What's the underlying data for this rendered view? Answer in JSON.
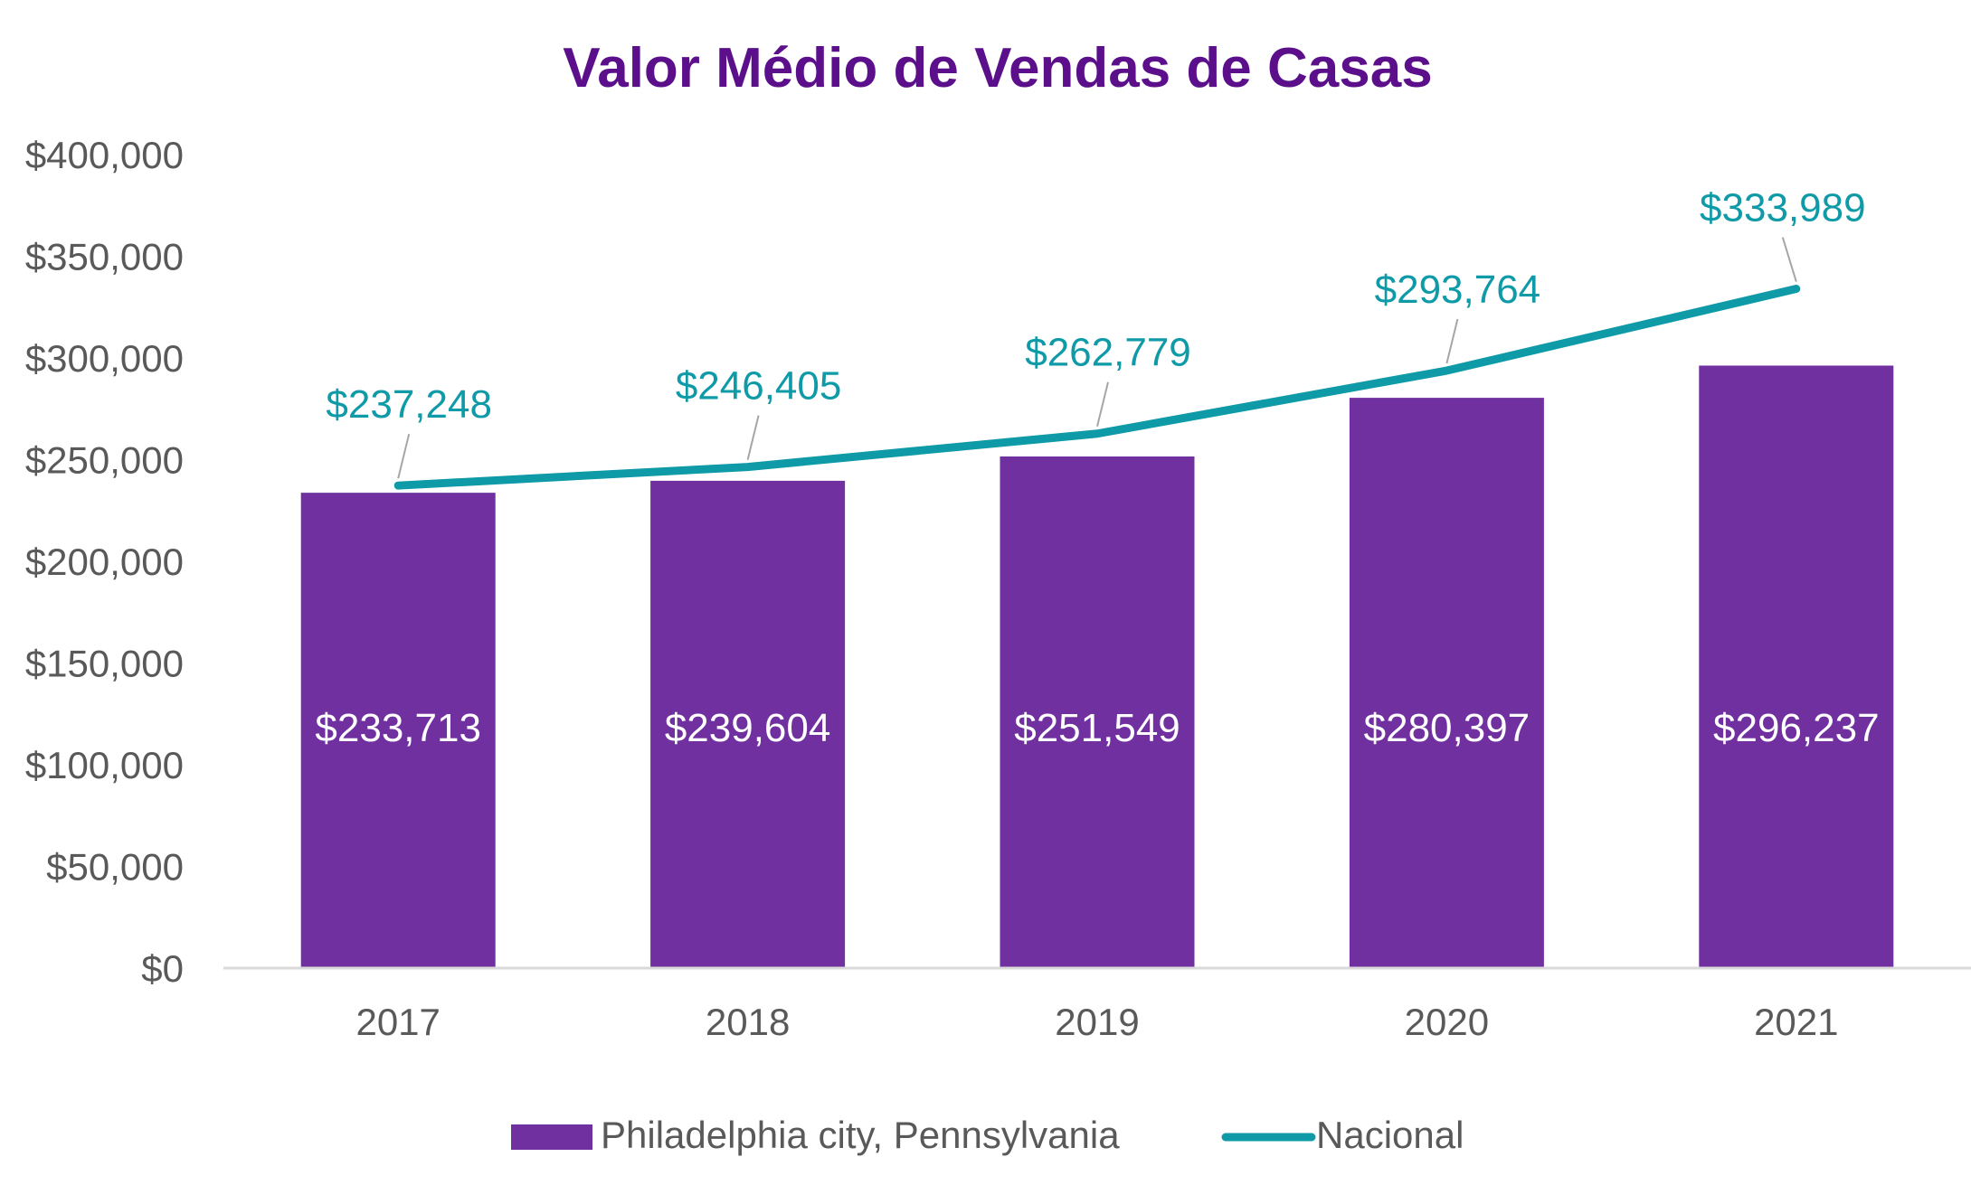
{
  "chart_data": {
    "type": "bar+line",
    "title": "Valor Médio de Vendas de Casas",
    "xlabel": "",
    "ylabel": "",
    "categories": [
      "2017",
      "2018",
      "2019",
      "2020",
      "2021"
    ],
    "ylim": [
      0,
      400000
    ],
    "yticks": [
      0,
      50000,
      100000,
      150000,
      200000,
      250000,
      300000,
      350000,
      400000
    ],
    "ytick_labels": [
      "$0",
      "$50,000",
      "$100,000",
      "$150,000",
      "$200,000",
      "$250,000",
      "$300,000",
      "$350,000",
      "$400,000"
    ],
    "grid": false,
    "legend_position": "bottom",
    "series": [
      {
        "name": "Philadelphia city, Pennsylvania",
        "type": "bar",
        "color": "#7030A0",
        "values": [
          233713,
          239604,
          251549,
          280397,
          296237
        ],
        "labels": [
          "$233,713",
          "$239,604",
          "$251,549",
          "$280,397",
          "$296,237"
        ]
      },
      {
        "name": "Nacional",
        "type": "line",
        "color": "#0E9AA7",
        "values": [
          237248,
          246405,
          262779,
          293764,
          333989
        ],
        "labels": [
          "$237,248",
          "$246,405",
          "$262,779",
          "$293,764",
          "$333,989"
        ]
      }
    ],
    "colors": {
      "title": "#5B0F8B",
      "axis_text": "#595959",
      "axis_line": "#D9D9D9"
    }
  }
}
